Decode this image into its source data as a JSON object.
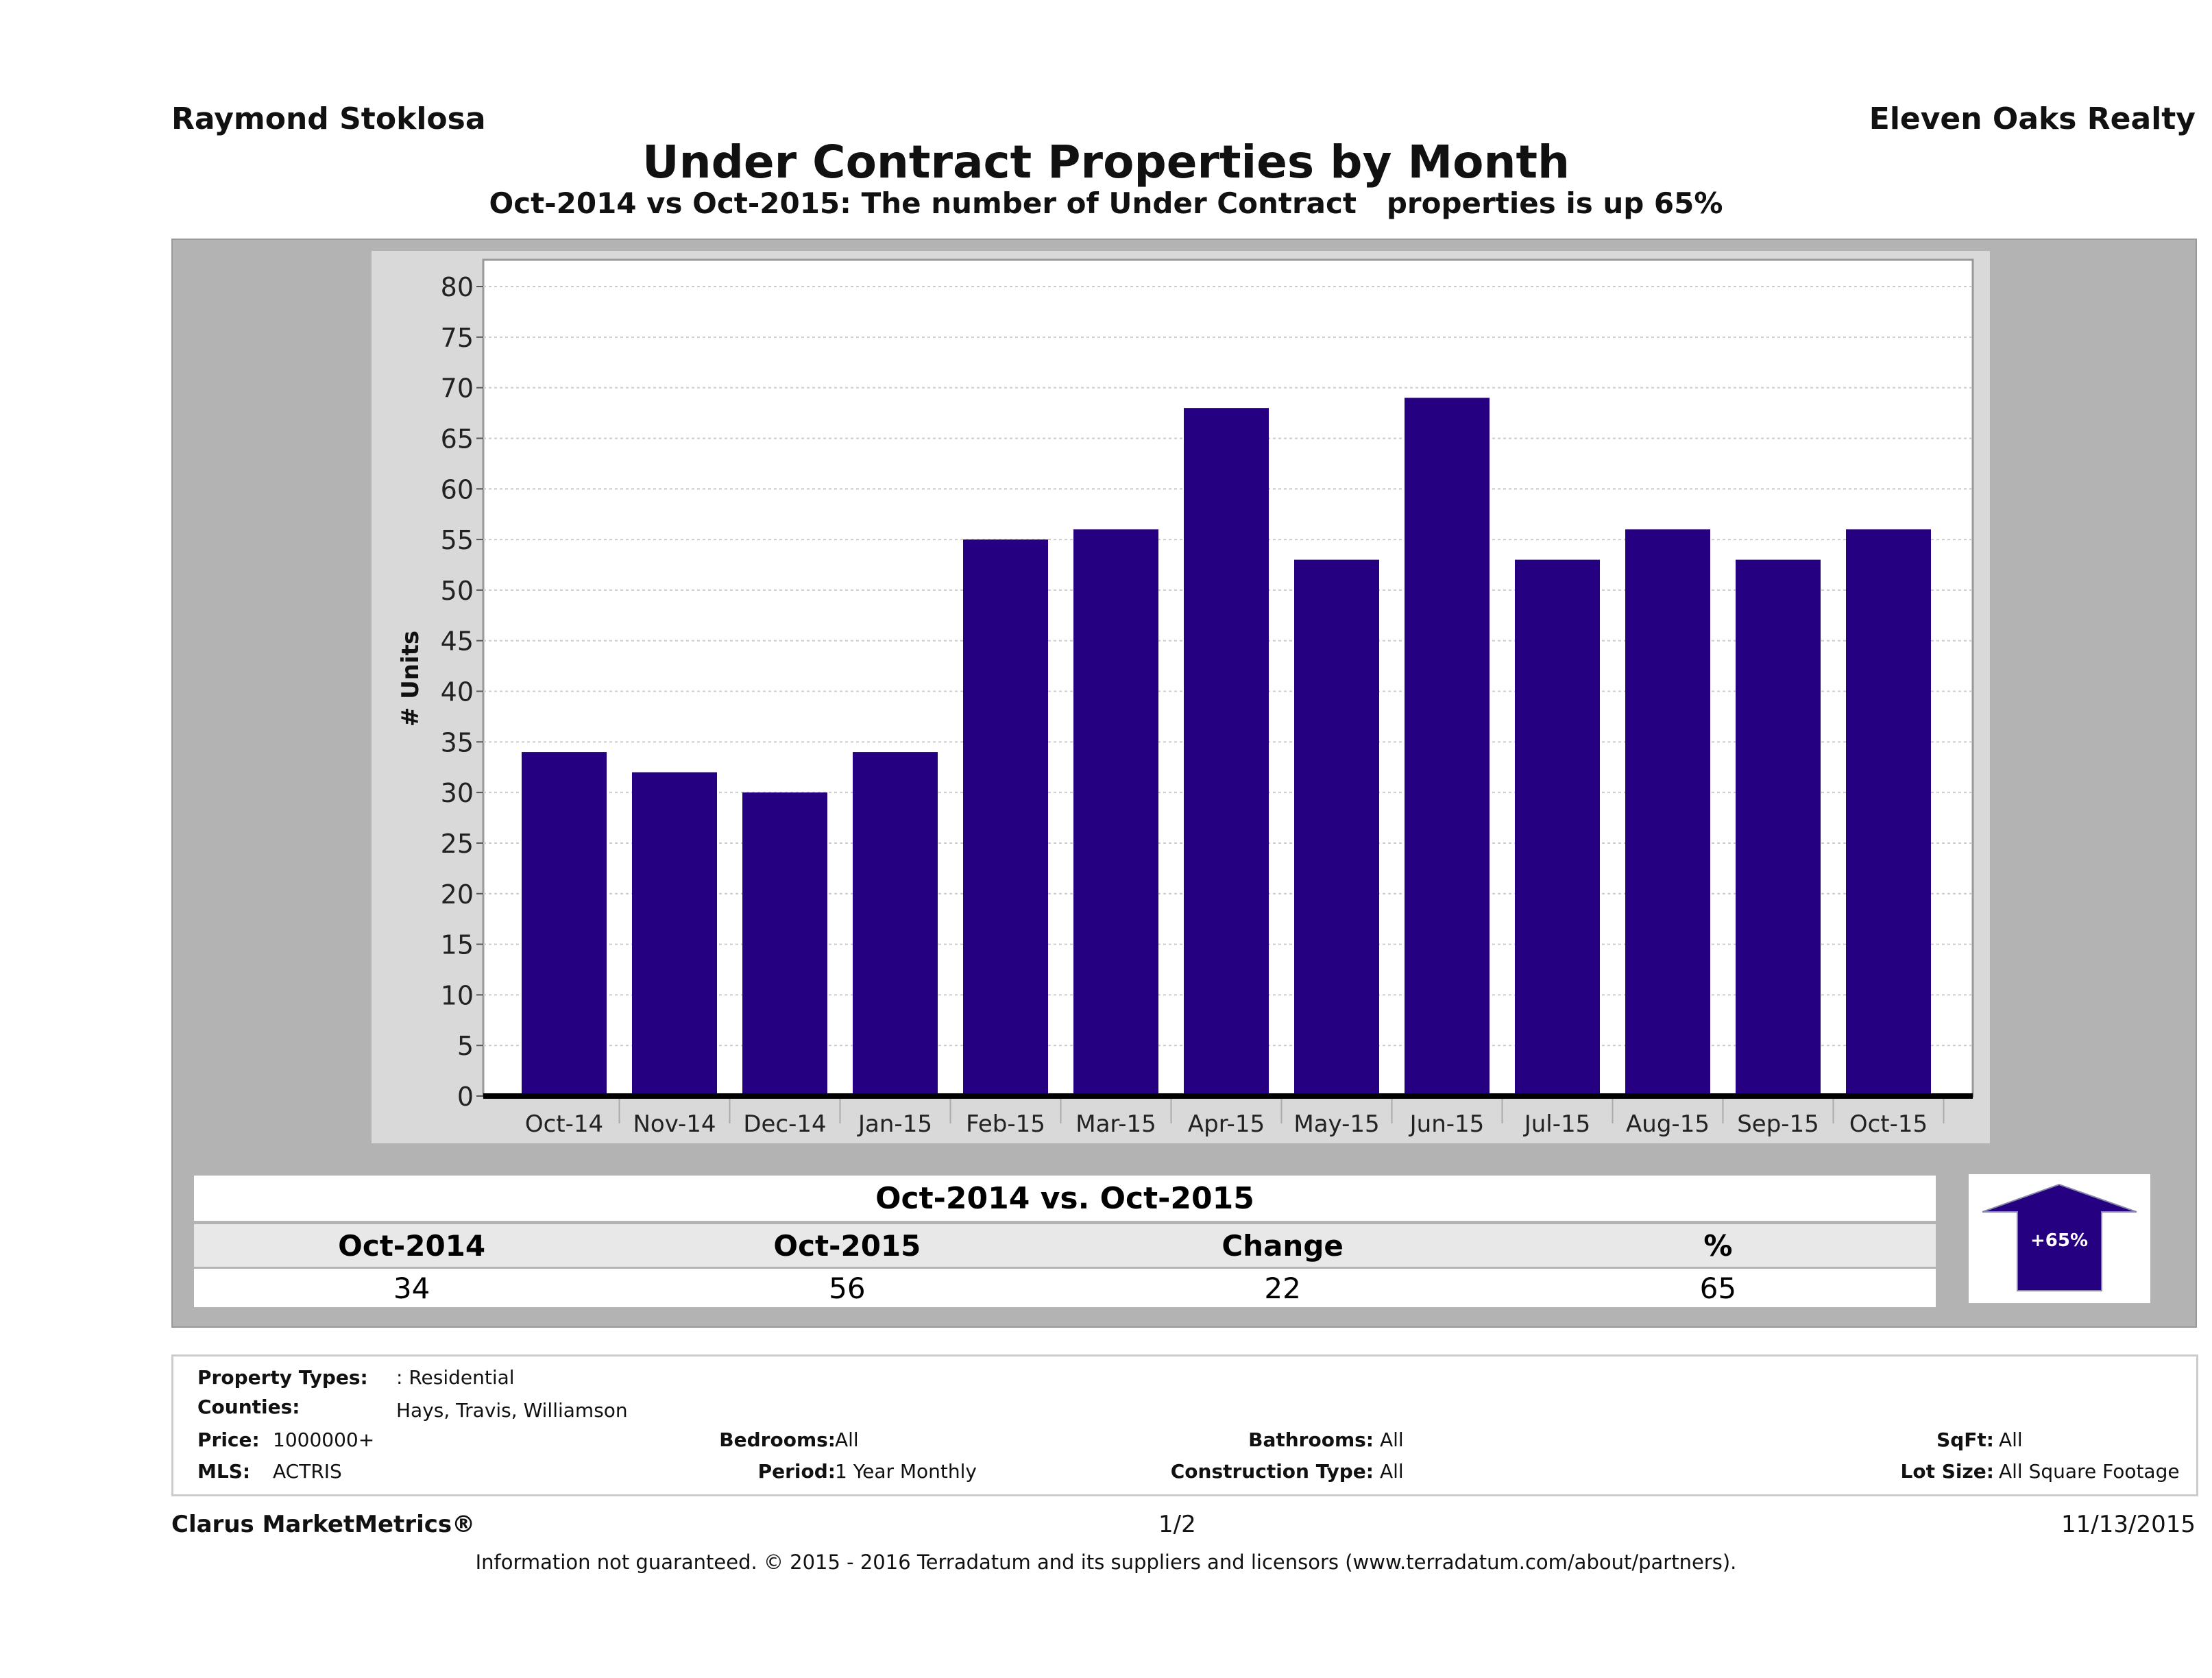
{
  "header": {
    "agent": "Raymond Stoklosa",
    "brokerage": "Eleven Oaks Realty"
  },
  "title": "Under Contract Properties by Month",
  "subtitle": "Oct-2014 vs Oct-2015: The number of Under Contract   properties is up 65%",
  "chart_data": {
    "type": "bar",
    "categories": [
      "Oct-14",
      "Nov-14",
      "Dec-14",
      "Jan-15",
      "Feb-15",
      "Mar-15",
      "Apr-15",
      "May-15",
      "Jun-15",
      "Jul-15",
      "Aug-15",
      "Sep-15",
      "Oct-15"
    ],
    "values": [
      34,
      32,
      30,
      34,
      55,
      56,
      68,
      53,
      69,
      53,
      56,
      53,
      56
    ],
    "ylabel": "# Units",
    "xlabel": "",
    "ylim": [
      0,
      80
    ],
    "yticks": [
      0,
      5,
      10,
      15,
      20,
      25,
      30,
      35,
      40,
      45,
      50,
      55,
      60,
      65,
      70,
      75,
      80
    ],
    "grid": true,
    "bar_color": "#250080"
  },
  "summary": {
    "title": "Oct-2014 vs. Oct-2015",
    "headers": [
      "Oct-2014",
      "Oct-2015",
      "Change",
      "%"
    ],
    "values": [
      "34",
      "56",
      "22",
      "65"
    ],
    "badge": "+65%",
    "badge_icon": "arrow-up-icon",
    "arrow_color": "#250080"
  },
  "filters": {
    "property_types": {
      "label": "Property Types:",
      "value": ": Residential"
    },
    "counties": {
      "label": "Counties:",
      "value": "Hays, Travis, Williamson"
    },
    "price": {
      "label": "Price:",
      "value": "1000000+"
    },
    "mls": {
      "label": "MLS:",
      "value": "ACTRIS"
    },
    "bedrooms": {
      "label": "Bedrooms:",
      "value": "All"
    },
    "period": {
      "label": "Period:",
      "value": "1 Year Monthly"
    },
    "bathrooms": {
      "label": "Bathrooms:",
      "value": "All"
    },
    "construction": {
      "label": "Construction Type:",
      "value": "All"
    },
    "sqft": {
      "label": "SqFt:",
      "value": "All"
    },
    "lot_size": {
      "label": "Lot Size:",
      "value": "All Square Footage"
    }
  },
  "footer": {
    "brand": "Clarus MarketMetrics®",
    "page": "1/2",
    "date": "11/13/2015",
    "disclaimer": "Information not guaranteed. © 2015 - 2016 Terradatum and its suppliers and licensors (www.terradatum.com/about/partners)."
  }
}
